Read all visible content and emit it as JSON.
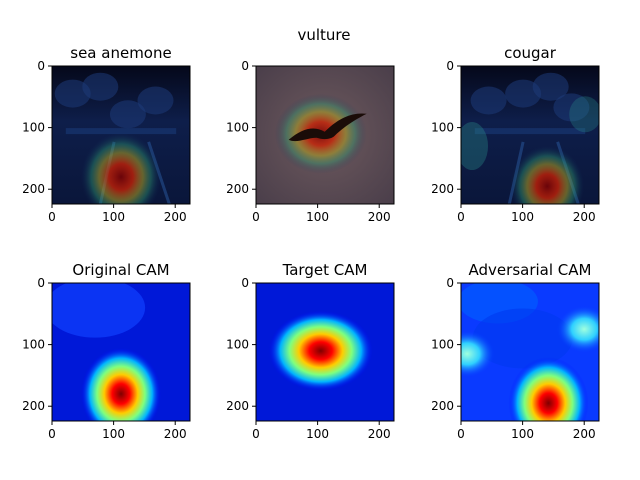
{
  "figure": {
    "suptitle": "vulture"
  },
  "chart_data": [
    {
      "type": "heatmap",
      "title": "sea anemone",
      "content": "dark night scene photo with CAM heatmap overlay",
      "xlim": [
        0,
        224
      ],
      "ylim": [
        224,
        0
      ],
      "xticks": [
        0,
        100,
        200
      ],
      "yticks": [
        0,
        100,
        200
      ],
      "hotspots": [
        {
          "x": 112,
          "y": 180,
          "intensity": 1.0
        }
      ]
    },
    {
      "type": "heatmap",
      "title": "",
      "content": "flying vulture photo with CAM heatmap overlay",
      "xlim": [
        0,
        224
      ],
      "ylim": [
        224,
        0
      ],
      "xticks": [
        0,
        100,
        200
      ],
      "yticks": [
        0,
        100,
        200
      ],
      "hotspots": [
        {
          "x": 105,
          "y": 110,
          "intensity": 1.0
        }
      ]
    },
    {
      "type": "heatmap",
      "title": "cougar",
      "content": "dark night scene photo with adversarial CAM heatmap overlay",
      "xlim": [
        0,
        224
      ],
      "ylim": [
        224,
        0
      ],
      "xticks": [
        0,
        100,
        200
      ],
      "yticks": [
        0,
        100,
        200
      ],
      "hotspots": [
        {
          "x": 140,
          "y": 195,
          "intensity": 0.9
        }
      ]
    },
    {
      "type": "heatmap",
      "title": "Original CAM",
      "colormap": "jet",
      "xlim": [
        0,
        224
      ],
      "ylim": [
        224,
        0
      ],
      "xticks": [
        0,
        100,
        200
      ],
      "yticks": [
        0,
        100,
        200
      ],
      "hotspots": [
        {
          "x": 112,
          "y": 180,
          "intensity": 1.0
        }
      ]
    },
    {
      "type": "heatmap",
      "title": "Target CAM",
      "colormap": "jet",
      "xlim": [
        0,
        224
      ],
      "ylim": [
        224,
        0
      ],
      "xticks": [
        0,
        100,
        200
      ],
      "yticks": [
        0,
        100,
        200
      ],
      "hotspots": [
        {
          "x": 105,
          "y": 110,
          "intensity": 1.0
        }
      ]
    },
    {
      "type": "heatmap",
      "title": "Adversarial CAM",
      "colormap": "jet",
      "xlim": [
        0,
        224
      ],
      "ylim": [
        224,
        0
      ],
      "xticks": [
        0,
        100,
        200
      ],
      "yticks": [
        0,
        100,
        200
      ],
      "hotspots": [
        {
          "x": 142,
          "y": 195,
          "intensity": 1.0
        },
        {
          "x": 200,
          "y": 75,
          "intensity": 0.45
        },
        {
          "x": 10,
          "y": 115,
          "intensity": 0.4
        }
      ]
    }
  ]
}
